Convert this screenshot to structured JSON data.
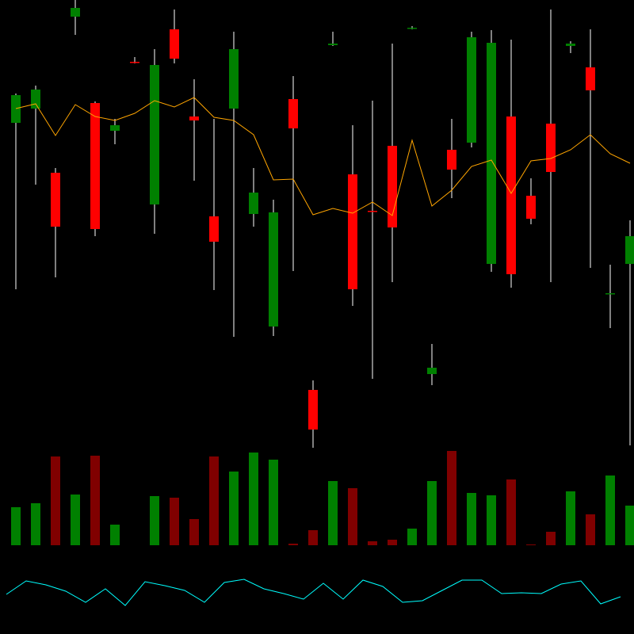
{
  "chart_data": [
    {
      "type": "candlestick",
      "open": [
        645,
        663,
        582,
        779,
        670,
        635,
        722,
        542,
        763,
        653,
        527,
        663,
        530,
        388,
        675,
        308,
        743,
        580,
        534,
        616,
        764,
        328,
        611,
        620,
        467,
        653,
        553,
        644,
        742,
        715,
        429,
        467
      ],
      "high": [
        682,
        692,
        588,
        800,
        672,
        650,
        728,
        738,
        788,
        700,
        650,
        760,
        588,
        548,
        704,
        320,
        760,
        642,
        673,
        745,
        767,
        366,
        650,
        760,
        762,
        750,
        575,
        788,
        748,
        763,
        466,
        522
      ],
      "low": [
        435,
        567,
        450,
        756,
        502,
        618,
        720,
        505,
        720,
        572,
        434,
        375,
        514,
        376,
        458,
        235,
        742,
        414,
        322,
        444,
        763,
        314,
        550,
        614,
        457,
        437,
        517,
        444,
        733,
        462,
        386,
        238
      ],
      "close": [
        680,
        687,
        514,
        790,
        511,
        642,
        721,
        718,
        726,
        648,
        495,
        738,
        557,
        532,
        638,
        258,
        745,
        435,
        533,
        513,
        765,
        336,
        586,
        753,
        746,
        454,
        524,
        583,
        745,
        686,
        430,
        502
      ],
      "up_color": "#008000",
      "down_color": "#ff0000",
      "wick_color": "#ffffff",
      "ma": {
        "color": "#ffa500",
        "values": [
          663,
          669,
          629,
          668,
          653,
          648,
          657,
          673,
          665,
          677,
          652,
          648,
          630,
          573,
          574,
          529,
          537,
          531,
          545,
          528,
          623,
          540,
          560,
          590,
          598,
          556,
          597,
          600,
          611,
          630,
          606,
          594
        ]
      },
      "ylim": [
        0,
        800
      ]
    },
    {
      "type": "bar",
      "values": [
        48,
        53,
        112,
        64,
        113,
        26,
        0,
        62,
        60,
        33,
        112,
        93,
        117,
        108,
        2,
        19,
        81,
        72,
        5,
        7,
        21,
        81,
        119,
        66,
        63,
        83,
        1,
        17,
        68,
        39,
        88,
        50
      ],
      "up_color": "#008000",
      "down_color": "#800000",
      "ylim": [
        0,
        130
      ]
    },
    {
      "type": "line",
      "values": [
        50,
        67,
        62,
        54,
        40,
        57,
        36,
        66,
        61,
        55,
        40,
        65,
        69,
        57,
        51,
        44,
        64,
        44,
        68,
        60,
        40,
        42,
        55,
        68,
        68,
        51,
        52,
        51,
        63,
        67,
        38,
        47
      ],
      "color": "#00ffff",
      "ylim": [
        0,
        100
      ]
    }
  ]
}
